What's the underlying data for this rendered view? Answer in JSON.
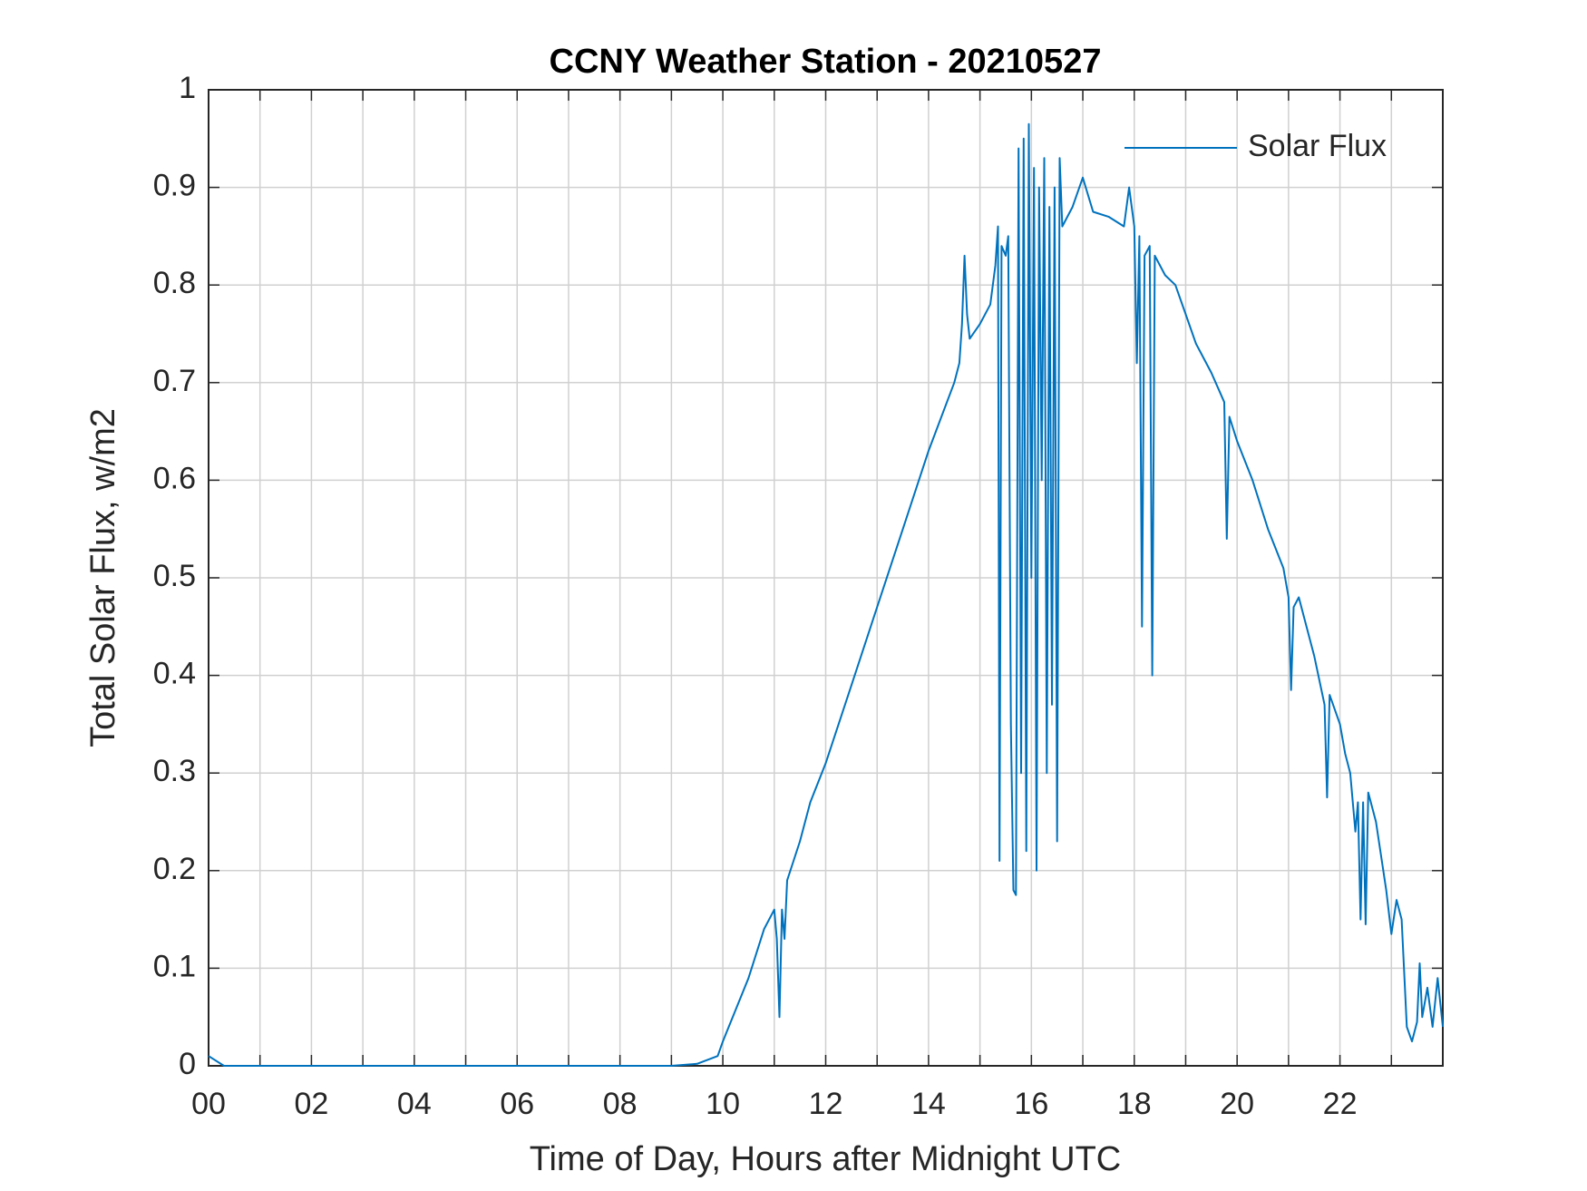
{
  "chart_data": {
    "type": "line",
    "title": "CCNY Weather Station - 20210527",
    "xlabel": "Time of Day, Hours after Midnight UTC",
    "ylabel": "Total Solar Flux, w/m2",
    "xlim": [
      0,
      24
    ],
    "ylim": [
      0,
      1
    ],
    "xticks": [
      {
        "value": 0,
        "label": "00"
      },
      {
        "value": 2,
        "label": "02"
      },
      {
        "value": 4,
        "label": "04"
      },
      {
        "value": 6,
        "label": "06"
      },
      {
        "value": 8,
        "label": "08"
      },
      10,
      12,
      14,
      16,
      18,
      20,
      22
    ],
    "xminorticks": [
      1,
      3,
      5,
      7,
      9,
      11,
      13,
      15,
      17,
      19,
      21,
      23
    ],
    "yticks": [
      0,
      0.1,
      0.2,
      0.3,
      0.4,
      0.5,
      0.6,
      0.7,
      0.8,
      0.9,
      1
    ],
    "grid": true,
    "legend": "upper right",
    "series": [
      {
        "name": "Solar Flux",
        "color": "#0072BD",
        "x": [
          0,
          0.3,
          9.0,
          9.5,
          9.9,
          10.0,
          10.5,
          10.8,
          11.0,
          11.05,
          11.1,
          11.15,
          11.2,
          11.25,
          11.5,
          11.7,
          12,
          12.5,
          13,
          13.5,
          14,
          14.5,
          14.6,
          14.65,
          14.7,
          14.75,
          14.8,
          15.0,
          15.2,
          15.3,
          15.35,
          15.38,
          15.42,
          15.5,
          15.55,
          15.6,
          15.65,
          15.7,
          15.75,
          15.8,
          15.85,
          15.9,
          15.95,
          16.0,
          16.05,
          16.1,
          16.15,
          16.2,
          16.25,
          16.3,
          16.35,
          16.4,
          16.45,
          16.5,
          16.55,
          16.6,
          16.8,
          17.0,
          17.2,
          17.5,
          17.8,
          17.9,
          18.0,
          18.05,
          18.1,
          18.15,
          18.2,
          18.3,
          18.35,
          18.4,
          18.6,
          18.8,
          19.0,
          19.2,
          19.5,
          19.75,
          19.8,
          19.85,
          20.0,
          20.3,
          20.6,
          20.9,
          21.0,
          21.05,
          21.1,
          21.2,
          21.5,
          21.7,
          21.75,
          21.8,
          22.0,
          22.1,
          22.2,
          22.3,
          22.35,
          22.4,
          22.45,
          22.5,
          22.55,
          22.7,
          22.9,
          23.0,
          23.1,
          23.2,
          23.3,
          23.4,
          23.5,
          23.55,
          23.6,
          23.7,
          23.8,
          23.9,
          24.0
        ],
        "values": [
          0.01,
          0,
          0,
          0.002,
          0.01,
          0.025,
          0.09,
          0.14,
          0.16,
          0.13,
          0.05,
          0.16,
          0.13,
          0.19,
          0.23,
          0.27,
          0.31,
          0.39,
          0.47,
          0.55,
          0.63,
          0.7,
          0.72,
          0.76,
          0.83,
          0.77,
          0.745,
          0.76,
          0.78,
          0.82,
          0.86,
          0.21,
          0.84,
          0.83,
          0.85,
          0.35,
          0.18,
          0.175,
          0.94,
          0.3,
          0.95,
          0.22,
          0.965,
          0.5,
          0.92,
          0.2,
          0.9,
          0.6,
          0.93,
          0.3,
          0.88,
          0.37,
          0.9,
          0.23,
          0.93,
          0.86,
          0.88,
          0.91,
          0.875,
          0.87,
          0.86,
          0.9,
          0.86,
          0.72,
          0.85,
          0.45,
          0.83,
          0.84,
          0.4,
          0.83,
          0.81,
          0.8,
          0.77,
          0.74,
          0.71,
          0.68,
          0.54,
          0.665,
          0.64,
          0.6,
          0.55,
          0.51,
          0.48,
          0.385,
          0.47,
          0.48,
          0.42,
          0.37,
          0.275,
          0.38,
          0.35,
          0.32,
          0.3,
          0.24,
          0.27,
          0.15,
          0.27,
          0.145,
          0.28,
          0.25,
          0.18,
          0.135,
          0.17,
          0.15,
          0.04,
          0.025,
          0.045,
          0.105,
          0.05,
          0.08,
          0.04,
          0.09,
          0.04
        ]
      }
    ]
  }
}
